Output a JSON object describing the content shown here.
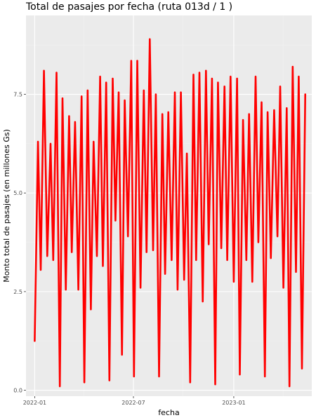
{
  "chart_data": {
    "type": "line",
    "title": "Total de pasajes por fecha (ruta 013d / 1 )",
    "xlabel": "fecha",
    "ylabel": "Monto total de pasajes (en millones Gs)",
    "x_ticks": [
      "2022-01",
      "2022-07",
      "2023-01"
    ],
    "y_ticks": [
      "0.0",
      "2.5",
      "5.0",
      "7.5"
    ],
    "xlim": [
      "2021-12-16",
      "2023-05-24"
    ],
    "ylim": [
      -0.15,
      9.5
    ],
    "grid": true,
    "legend": "none",
    "colors": {
      "line": "#ff0000",
      "panel": "#ebebeb",
      "grid_major": "#ffffff",
      "grid_minor": "#f2f2f2"
    },
    "series": [
      {
        "x": [
          "2022-01-01",
          "2022-01-07",
          "2022-01-12",
          "2022-01-18",
          "2022-01-24",
          "2022-01-30",
          "2022-02-04",
          "2022-02-10",
          "2022-02-16",
          "2022-02-21",
          "2022-02-27",
          "2022-03-05",
          "2022-03-10",
          "2022-03-16",
          "2022-03-22",
          "2022-03-28",
          "2022-04-02",
          "2022-04-08",
          "2022-04-14",
          "2022-04-19",
          "2022-04-25",
          "2022-05-01",
          "2022-05-06",
          "2022-05-12",
          "2022-05-18",
          "2022-05-24",
          "2022-05-29",
          "2022-06-04",
          "2022-06-10",
          "2022-06-15",
          "2022-06-21",
          "2022-06-27",
          "2022-07-02",
          "2022-07-08",
          "2022-07-14",
          "2022-07-20",
          "2022-07-25",
          "2022-07-31",
          "2022-08-06",
          "2022-08-11",
          "2022-08-17",
          "2022-08-23",
          "2022-08-28",
          "2022-09-03",
          "2022-09-09",
          "2022-09-15",
          "2022-09-20",
          "2022-09-26",
          "2022-10-02",
          "2022-10-07",
          "2022-10-13",
          "2022-10-19",
          "2022-10-24",
          "2022-10-30",
          "2022-11-05",
          "2022-11-11",
          "2022-11-16",
          "2022-11-22",
          "2022-11-28",
          "2022-12-03",
          "2022-12-09",
          "2022-12-15",
          "2022-12-20",
          "2022-12-26",
          "2023-01-01",
          "2023-01-07",
          "2023-01-12",
          "2023-01-18",
          "2023-01-24",
          "2023-01-29",
          "2023-02-04",
          "2023-02-10",
          "2023-02-15",
          "2023-02-21",
          "2023-02-27",
          "2023-03-04",
          "2023-03-10",
          "2023-03-16",
          "2023-03-22",
          "2023-03-27",
          "2023-04-02",
          "2023-04-08",
          "2023-04-13",
          "2023-04-19",
          "2023-04-25",
          "2023-04-30",
          "2023-05-06",
          "2023-05-12"
        ],
        "y": [
          1.25,
          6.3,
          3.05,
          8.1,
          3.4,
          6.25,
          3.3,
          8.05,
          0.1,
          7.4,
          2.55,
          6.95,
          3.5,
          6.8,
          2.55,
          7.45,
          0.2,
          7.6,
          2.05,
          6.3,
          3.4,
          7.95,
          3.15,
          7.8,
          0.25,
          7.9,
          4.3,
          7.55,
          0.9,
          7.35,
          3.9,
          8.35,
          0.35,
          8.35,
          2.6,
          7.6,
          3.5,
          8.9,
          3.55,
          7.5,
          0.35,
          7.0,
          2.95,
          7.05,
          3.3,
          7.55,
          2.55,
          7.55,
          2.8,
          6.0,
          0.2,
          8.0,
          3.3,
          8.05,
          2.25,
          8.1,
          3.7,
          7.9,
          0.15,
          7.8,
          3.6,
          7.7,
          3.3,
          7.95,
          2.75,
          7.9,
          0.4,
          6.85,
          3.3,
          7.0,
          2.75,
          7.95,
          3.75,
          7.3,
          0.35,
          7.05,
          3.35,
          7.1,
          3.9,
          7.7,
          2.6,
          7.15,
          0.1,
          8.2,
          3.0,
          7.95,
          0.55,
          7.5
        ]
      }
    ]
  }
}
